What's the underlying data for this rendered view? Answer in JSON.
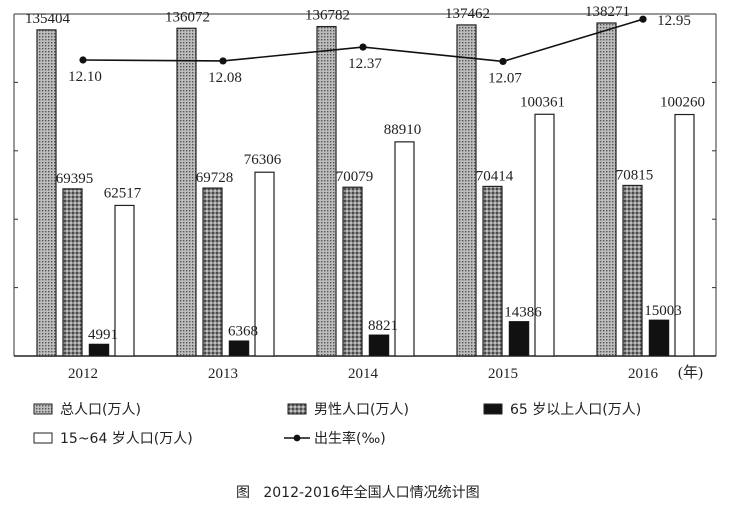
{
  "chart_data": {
    "type": "bar",
    "caption": "图   2012-2016年全国人口情况统计图",
    "x_unit": "(年)",
    "categories": [
      "2012",
      "2013",
      "2014",
      "2015",
      "2016"
    ],
    "series": [
      {
        "name": "总人口(万人)",
        "kind": "bar",
        "pattern": "dots",
        "values": [
          135404,
          136072,
          136782,
          137462,
          138271
        ]
      },
      {
        "name": "男性人口(万人)",
        "kind": "bar",
        "pattern": "grid",
        "values": [
          69395,
          69728,
          70079,
          70414,
          70815
        ]
      },
      {
        "name": "65 岁以上人口(万人)",
        "kind": "bar",
        "pattern": "black",
        "values": [
          4991,
          6368,
          8821,
          14386,
          15003
        ]
      },
      {
        "name": "15~64 岁人口(万人)",
        "kind": "bar",
        "pattern": "white",
        "values": [
          62517,
          76306,
          88910,
          100361,
          100260
        ]
      },
      {
        "name": "出生率(‰)",
        "kind": "line",
        "values": [
          12.1,
          12.08,
          12.37,
          12.07,
          12.95
        ]
      }
    ],
    "legend_position": "bottom",
    "colors": {
      "bar_black": "#111111",
      "outline": "#222222",
      "line": "#111111"
    }
  }
}
